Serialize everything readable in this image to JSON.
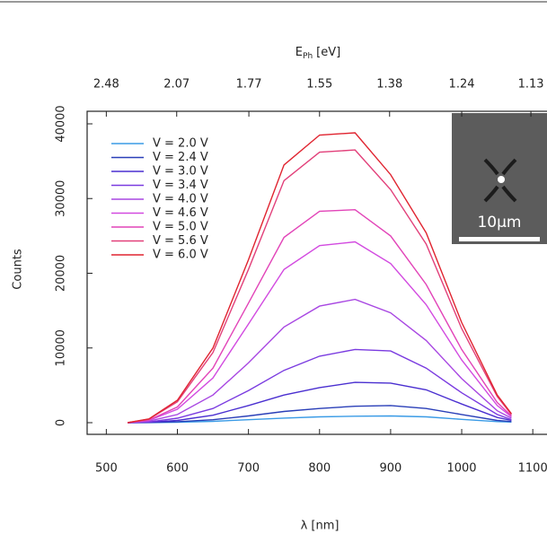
{
  "chart_data": {
    "type": "line",
    "xlabel": "λ [nm]",
    "ylabel": "Counts",
    "x2label": [
      "E",
      "Ph",
      "[eV]"
    ],
    "x": [
      530,
      560,
      600,
      650,
      700,
      750,
      800,
      850,
      900,
      950,
      1000,
      1050,
      1070
    ],
    "series": [
      {
        "name": "V = 2.0 V",
        "color": "#3a9be6",
        "values": [
          0,
          10,
          60,
          180,
          400,
          620,
          780,
          870,
          900,
          780,
          450,
          150,
          80
        ]
      },
      {
        "name": "V = 2.4 V",
        "color": "#2a3fb8",
        "values": [
          0,
          20,
          130,
          400,
          900,
          1500,
          1900,
          2200,
          2300,
          1900,
          1100,
          300,
          150
        ]
      },
      {
        "name": "V = 3.0 V",
        "color": "#4a2fd0",
        "values": [
          0,
          50,
          300,
          1000,
          2300,
          3700,
          4700,
          5400,
          5300,
          4400,
          2500,
          700,
          300
        ]
      },
      {
        "name": "V = 3.4 V",
        "color": "#7a3be0",
        "values": [
          0,
          100,
          600,
          1900,
          4300,
          7000,
          8900,
          9800,
          9600,
          7300,
          4000,
          1100,
          400
        ]
      },
      {
        "name": "V = 4.0 V",
        "color": "#a847e2",
        "values": [
          0,
          200,
          1100,
          3700,
          8000,
          12800,
          15600,
          16500,
          14700,
          11000,
          5900,
          1600,
          600
        ]
      },
      {
        "name": "V = 4.6 V",
        "color": "#d24ae0",
        "values": [
          0,
          300,
          1800,
          6000,
          13200,
          20500,
          23700,
          24200,
          21300,
          15800,
          8400,
          2300,
          800
        ]
      },
      {
        "name": "V = 5.0 V",
        "color": "#e244b8",
        "values": [
          0,
          350,
          2100,
          7300,
          16000,
          24800,
          28300,
          28500,
          25000,
          18500,
          9800,
          2700,
          900
        ]
      },
      {
        "name": "V = 5.6 V",
        "color": "#e2407a",
        "values": [
          0,
          470,
          2800,
          9400,
          20500,
          32400,
          36200,
          36500,
          31200,
          23900,
          12600,
          3500,
          1100
        ]
      },
      {
        "name": "V = 6.0 V",
        "color": "#e02430",
        "values": [
          0,
          500,
          3000,
          10000,
          21800,
          34500,
          38500,
          38800,
          33200,
          25400,
          13400,
          3700,
          1200
        ]
      }
    ],
    "xlim": [
      473,
      1120
    ],
    "ylim": [
      -1560,
      41680
    ],
    "xticks": [
      500,
      600,
      700,
      800,
      900,
      1000,
      1100
    ],
    "yticks": [
      0,
      10000,
      20000,
      30000,
      40000
    ],
    "x2ticks": [
      2.48,
      2.07,
      1.77,
      1.55,
      1.38,
      1.24,
      1.13
    ],
    "legend": "upper left",
    "annotations": [
      "10µm"
    ]
  }
}
